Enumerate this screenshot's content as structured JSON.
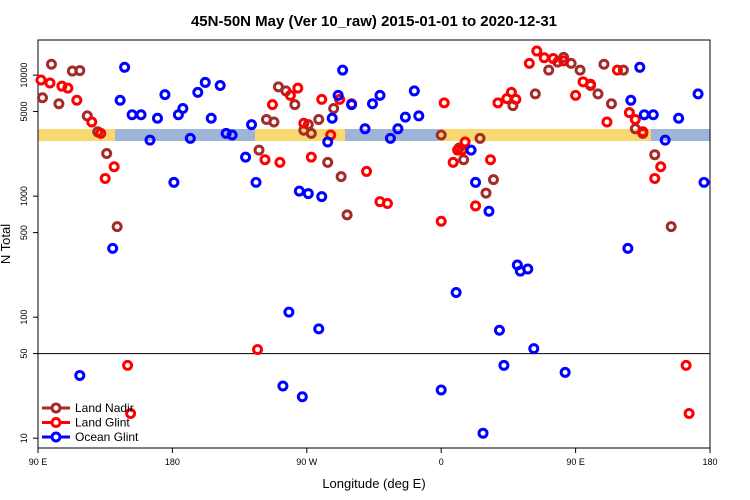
{
  "chart_data": {
    "type": "scatter",
    "title": "45N-50N May (Ver 10_raw)   2015-01-01 to 2020-12-31",
    "x_label": "Longitude (deg E)",
    "y_label": "N Total",
    "xlim": [
      90,
      540
    ],
    "ylim": [
      8.3,
      19500
    ],
    "log_y": true,
    "xticks": [
      {
        "value": 90,
        "label": "90 E"
      },
      180,
      {
        "value": 270,
        "label": "90 W"
      },
      {
        "value": 360,
        "label": "0"
      },
      {
        "value": 450,
        "label": "90 E"
      },
      {
        "value": 540,
        "label": "180"
      }
    ],
    "yticks": [
      10,
      50,
      100,
      500,
      1000,
      5000,
      10000
    ],
    "hline": 50,
    "legend": "bottom-left",
    "series": [
      {
        "name": "Land Nadir",
        "color": "#a52a2a",
        "x": [
          93,
          99,
          104,
          113,
          118,
          123,
          130,
          136,
          143,
          238,
          243,
          248,
          251,
          256,
          262,
          268,
          271,
          273,
          278,
          284,
          288,
          293,
          297,
          360,
          372,
          375,
          386,
          390,
          395,
          408,
          423,
          432,
          438,
          442,
          447,
          453,
          460,
          465,
          469,
          474,
          482,
          490,
          495,
          503,
          514
        ],
        "values": [
          6500,
          12300,
          5800,
          10800,
          10900,
          4600,
          3400,
          2250,
          560,
          2400,
          4300,
          4100,
          8000,
          7400,
          5700,
          3500,
          3900,
          3300,
          4300,
          1900,
          5300,
          1450,
          700,
          3200,
          2500,
          2000,
          3000,
          1060,
          1370,
          5600,
          7000,
          11000,
          12800,
          14000,
          12500,
          11000,
          8200,
          7000,
          12300,
          5800,
          11000,
          3600,
          3300,
          2200,
          560
        ]
      },
      {
        "name": "Land Glint",
        "color": "#ff0000",
        "x": [
          92,
          98,
          106,
          110,
          116,
          126,
          132,
          135,
          141,
          150,
          152,
          237,
          242,
          247,
          252,
          259,
          264,
          268,
          273,
          280,
          286,
          292,
          300,
          310,
          319,
          324,
          360,
          362,
          368,
          371,
          374,
          376,
          383,
          393,
          398,
          404,
          407,
          410,
          419,
          424,
          429,
          435,
          442,
          450,
          455,
          460,
          471,
          478,
          486,
          490,
          495,
          503,
          507,
          524,
          526
        ],
        "values": [
          9100,
          8600,
          8100,
          7800,
          6200,
          4100,
          3300,
          1400,
          1750,
          40,
          16,
          54,
          2000,
          5700,
          1900,
          6800,
          7800,
          4000,
          2100,
          6300,
          3200,
          6300,
          5800,
          1600,
          900,
          870,
          620,
          5900,
          1900,
          2400,
          2400,
          2800,
          830,
          2000,
          5900,
          6400,
          7200,
          6300,
          12500,
          15800,
          13900,
          13700,
          13100,
          6800,
          8800,
          8400,
          4100,
          11000,
          4900,
          4300,
          3400,
          1400,
          1750,
          40,
          16
        ]
      },
      {
        "name": "Ocean Glint",
        "color": "#0000ff",
        "x": [
          118,
          140,
          145,
          148,
          153,
          159,
          165,
          170,
          175,
          181,
          184,
          187,
          192,
          197,
          202,
          206,
          212,
          216,
          220,
          229,
          233,
          236,
          254,
          258,
          265,
          267,
          271,
          278,
          280,
          284,
          287,
          291,
          294,
          300,
          309,
          314,
          319,
          326,
          331,
          336,
          342,
          345,
          360,
          370,
          380,
          383,
          388,
          392,
          399,
          402,
          411,
          413,
          418,
          422,
          443,
          485,
          487,
          493,
          496,
          502,
          510,
          519,
          532,
          536
        ],
        "values": [
          33,
          370,
          6200,
          11600,
          4700,
          4700,
          2900,
          4400,
          6900,
          1300,
          4700,
          5300,
          3000,
          7200,
          8700,
          4400,
          8200,
          3300,
          3200,
          2100,
          3900,
          1300,
          27,
          110,
          1100,
          22,
          1050,
          80,
          990,
          2800,
          4400,
          6800,
          11000,
          5700,
          3600,
          5800,
          6800,
          3000,
          3600,
          4500,
          7400,
          4600,
          25,
          160,
          2400,
          1300,
          11,
          750,
          78,
          40,
          270,
          240,
          250,
          55,
          35,
          370,
          6200,
          11600,
          4700,
          4700,
          2900,
          4400,
          7000,
          1300
        ]
      }
    ]
  }
}
